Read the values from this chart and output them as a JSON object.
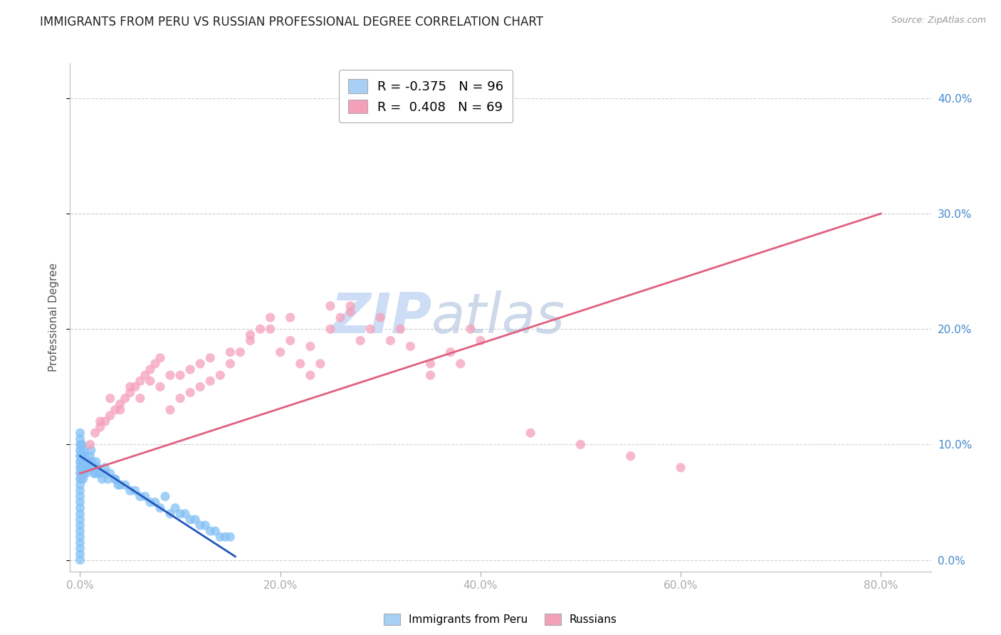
{
  "title": "IMMIGRANTS FROM PERU VS RUSSIAN PROFESSIONAL DEGREE CORRELATION CHART",
  "source": "Source: ZipAtlas.com",
  "xlabel_values": [
    0.0,
    20.0,
    40.0,
    60.0,
    80.0
  ],
  "ylabel": "Professional Degree",
  "ylabel_values": [
    0.0,
    10.0,
    20.0,
    30.0,
    40.0
  ],
  "xlim": [
    -1.0,
    85.0
  ],
  "ylim": [
    -1.0,
    43.0
  ],
  "background_color": "#ffffff",
  "grid_color": "#d0d0d0",
  "peru_color": "#85c1f5",
  "russian_color": "#f5a0bb",
  "peru_trend_color": "#2255bb",
  "russian_trend_color": "#e06080",
  "legend_color1": "#a8d0f5",
  "legend_color2": "#f5a0bb",
  "R1": -0.375,
  "N1": 96,
  "R2": 0.408,
  "N2": 69,
  "watermark": "ZIPatlas",
  "watermark_color": "#ccddf5",
  "title_fontsize": 12,
  "axis_label_fontsize": 11,
  "tick_fontsize": 11,
  "right_tick_color": "#4488cc",
  "peru_x": [
    0.0,
    0.0,
    0.0,
    0.0,
    0.0,
    0.0,
    0.0,
    0.0,
    0.0,
    0.0,
    0.0,
    0.0,
    0.0,
    0.0,
    0.0,
    0.0,
    0.0,
    0.0,
    0.0,
    0.0,
    0.0,
    0.0,
    0.0,
    0.1,
    0.1,
    0.1,
    0.1,
    0.1,
    0.1,
    0.1,
    0.2,
    0.2,
    0.2,
    0.2,
    0.2,
    0.3,
    0.3,
    0.3,
    0.3,
    0.4,
    0.4,
    0.4,
    0.5,
    0.5,
    0.6,
    0.6,
    0.7,
    0.8,
    0.9,
    1.0,
    1.0,
    1.1,
    1.1,
    1.2,
    1.3,
    1.4,
    1.5,
    1.6,
    1.7,
    2.0,
    2.2,
    2.5,
    3.0,
    3.5,
    4.0,
    5.0,
    6.0,
    7.0,
    8.0,
    9.0,
    10.0,
    11.0,
    12.0,
    13.0,
    14.0,
    15.0,
    1.0,
    1.5,
    2.5,
    3.5,
    4.5,
    5.5,
    6.5,
    7.5,
    8.5,
    9.5,
    10.5,
    11.5,
    12.5,
    13.5,
    14.5,
    0.5,
    0.8,
    1.8,
    2.8,
    3.8
  ],
  "peru_y": [
    7.0,
    7.5,
    8.0,
    8.5,
    9.0,
    9.5,
    10.0,
    10.5,
    11.0,
    6.0,
    6.5,
    5.5,
    5.0,
    4.5,
    4.0,
    3.5,
    3.0,
    2.5,
    2.0,
    1.5,
    1.0,
    0.5,
    0.0,
    8.0,
    9.0,
    7.5,
    10.0,
    8.5,
    7.0,
    9.5,
    8.0,
    9.0,
    7.5,
    8.5,
    10.0,
    8.0,
    9.0,
    7.0,
    8.5,
    8.0,
    9.5,
    7.5,
    8.0,
    9.0,
    8.5,
    7.5,
    8.0,
    8.5,
    8.0,
    8.5,
    9.0,
    8.0,
    9.5,
    8.5,
    8.0,
    7.5,
    8.0,
    8.5,
    8.0,
    7.5,
    7.0,
    8.0,
    7.5,
    7.0,
    6.5,
    6.0,
    5.5,
    5.0,
    4.5,
    4.0,
    4.0,
    3.5,
    3.0,
    2.5,
    2.0,
    2.0,
    8.5,
    7.5,
    7.5,
    7.0,
    6.5,
    6.0,
    5.5,
    5.0,
    5.5,
    4.5,
    4.0,
    3.5,
    3.0,
    2.5,
    2.0,
    8.0,
    8.5,
    7.5,
    7.0,
    6.5
  ],
  "russian_x": [
    1.0,
    1.5,
    2.0,
    2.5,
    3.0,
    3.5,
    4.0,
    4.5,
    5.0,
    5.5,
    6.0,
    6.5,
    7.0,
    7.5,
    8.0,
    9.0,
    10.0,
    11.0,
    12.0,
    13.0,
    14.0,
    15.0,
    16.0,
    17.0,
    18.0,
    19.0,
    20.0,
    21.0,
    22.0,
    23.0,
    24.0,
    25.0,
    26.0,
    27.0,
    28.0,
    30.0,
    32.0,
    35.0,
    38.0,
    40.0,
    45.0,
    50.0,
    55.0,
    60.0,
    3.0,
    5.0,
    7.0,
    9.0,
    11.0,
    13.0,
    15.0,
    17.0,
    19.0,
    21.0,
    23.0,
    25.0,
    27.0,
    29.0,
    31.0,
    33.0,
    35.0,
    37.0,
    39.0,
    2.0,
    4.0,
    6.0,
    8.0,
    10.0,
    12.0
  ],
  "russian_y": [
    10.0,
    11.0,
    11.5,
    12.0,
    12.5,
    13.0,
    13.5,
    14.0,
    14.5,
    15.0,
    15.5,
    16.0,
    16.5,
    17.0,
    17.5,
    13.0,
    14.0,
    14.5,
    15.0,
    15.5,
    16.0,
    17.0,
    18.0,
    19.0,
    20.0,
    21.0,
    18.0,
    19.0,
    17.0,
    16.0,
    17.0,
    20.0,
    21.0,
    22.0,
    19.0,
    21.0,
    20.0,
    16.0,
    17.0,
    19.0,
    11.0,
    10.0,
    9.0,
    8.0,
    14.0,
    15.0,
    15.5,
    16.0,
    16.5,
    17.5,
    18.0,
    19.5,
    20.0,
    21.0,
    18.5,
    22.0,
    21.5,
    20.0,
    19.0,
    18.5,
    17.0,
    18.0,
    20.0,
    12.0,
    13.0,
    14.0,
    15.0,
    16.0,
    17.0
  ],
  "peru_trend_x": [
    0.0,
    15.5
  ],
  "peru_trend_y": [
    9.0,
    0.3
  ],
  "russian_trend_x": [
    0.0,
    80.0
  ],
  "russian_trend_y": [
    7.5,
    30.0
  ]
}
